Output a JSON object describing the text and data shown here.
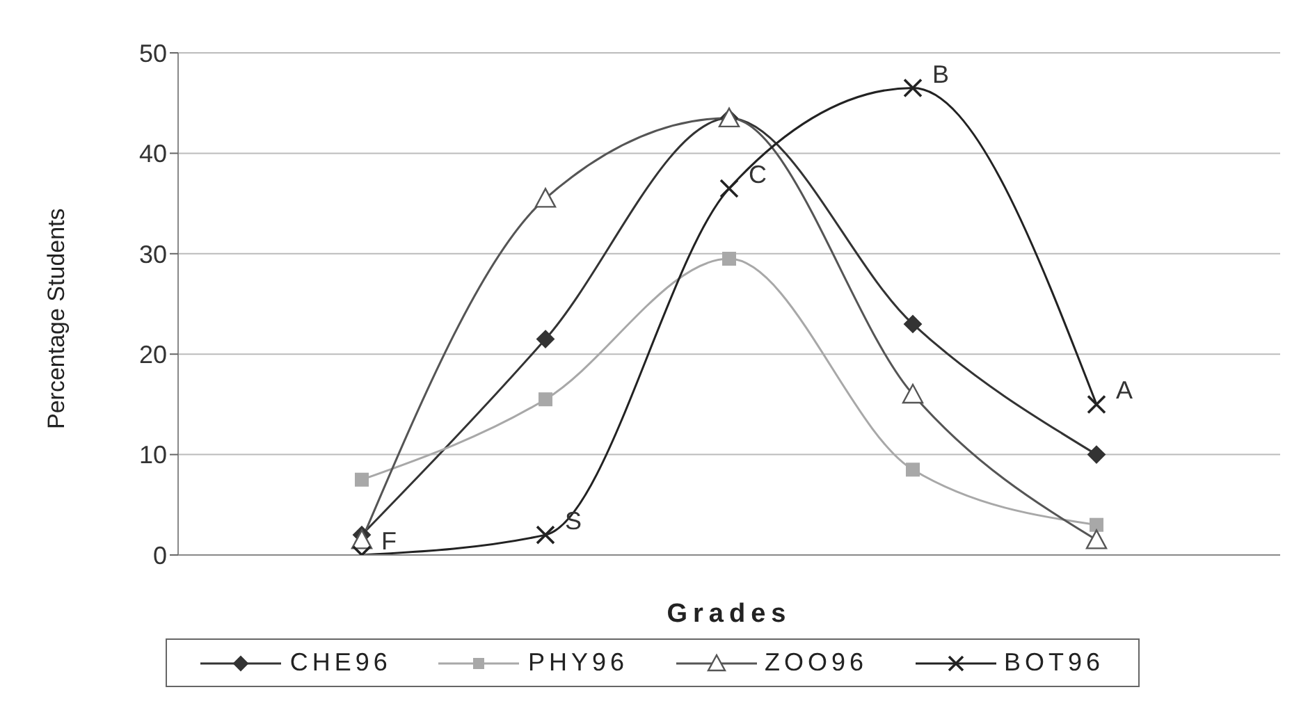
{
  "chart_data": {
    "type": "line",
    "xlabel": "Grades",
    "ylabel": "Percentage Students",
    "categories": [
      null,
      null,
      null,
      null,
      null
    ],
    "ylim": [
      0,
      50
    ],
    "yticks": [
      0,
      10,
      20,
      30,
      40,
      50
    ],
    "grid": "y",
    "legend": "bottom",
    "tick_labels": "y",
    "series": [
      {
        "name": "CHE96",
        "color": "#333333",
        "marker": "diamond",
        "values": [
          2,
          21.5,
          43.5,
          23,
          10
        ]
      },
      {
        "name": "PHY96",
        "color": "#a8a8a8",
        "marker": "square",
        "values": [
          7.5,
          15.5,
          29.5,
          8.5,
          3
        ]
      },
      {
        "name": "ZOO96",
        "color": "#555555",
        "marker": "triangle",
        "values": [
          1.5,
          35.5,
          43.5,
          16,
          1.5
        ]
      },
      {
        "name": "BOT96",
        "color": "#222222",
        "marker": "cross",
        "values": [
          0,
          2,
          36.5,
          46.5,
          15
        ],
        "value_labels": [
          "F",
          "S",
          "C",
          "B",
          "A"
        ]
      }
    ]
  }
}
